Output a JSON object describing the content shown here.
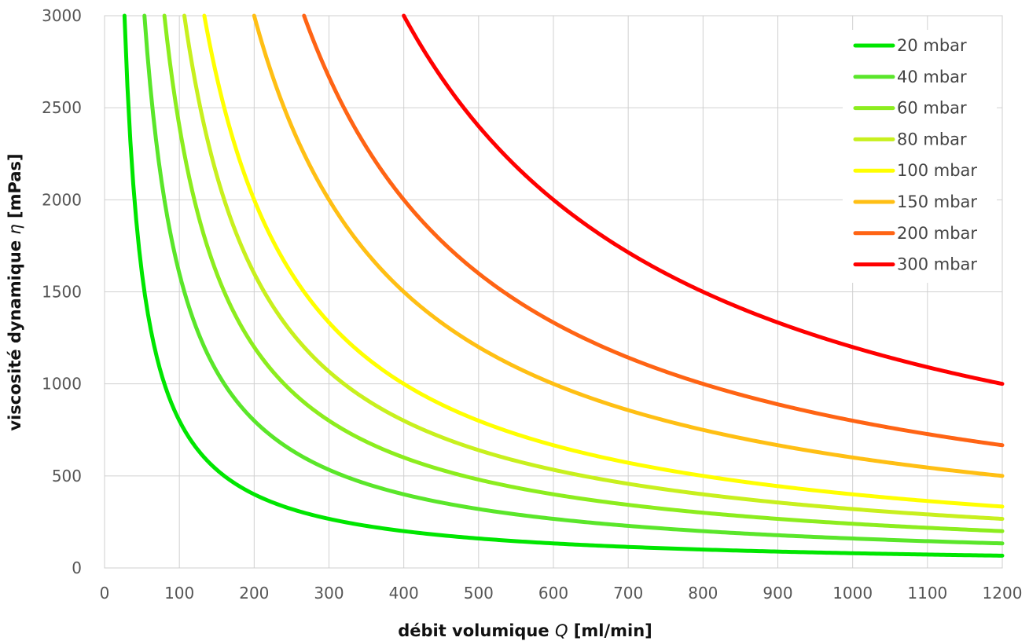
{
  "chart_data": {
    "type": "line",
    "title": "",
    "xlabel_prefix": "débit volumique ",
    "xlabel_symbol": "Q",
    "xlabel_suffix": " [ml/min]",
    "ylabel_prefix": "viscosité dynamique ",
    "ylabel_symbol": "η",
    "ylabel_suffix": " [mPas]",
    "xlim": [
      0,
      1200
    ],
    "ylim": [
      0,
      3000
    ],
    "x_ticks": [
      0,
      100,
      200,
      300,
      400,
      500,
      600,
      700,
      800,
      900,
      1000,
      1100,
      1200
    ],
    "y_ticks": [
      0,
      500,
      1000,
      1500,
      2000,
      2500,
      3000
    ],
    "grid": true,
    "legend_position": "top-right",
    "curve_form": "y = k / x",
    "series": [
      {
        "name": "20 mbar",
        "k": 80000,
        "color": "#00e600",
        "points": [
          [
            30,
            2667
          ],
          [
            50,
            1600
          ],
          [
            100,
            800
          ],
          [
            200,
            400
          ],
          [
            300,
            267
          ],
          [
            400,
            200
          ],
          [
            600,
            133
          ],
          [
            800,
            100
          ],
          [
            1000,
            80
          ],
          [
            1200,
            67
          ]
        ]
      },
      {
        "name": "40 mbar",
        "k": 160000,
        "color": "#5ae62a",
        "points": [
          [
            55,
            2909
          ],
          [
            100,
            1600
          ],
          [
            200,
            800
          ],
          [
            300,
            533
          ],
          [
            400,
            400
          ],
          [
            600,
            267
          ],
          [
            800,
            200
          ],
          [
            1000,
            160
          ],
          [
            1200,
            133
          ]
        ]
      },
      {
        "name": "60 mbar",
        "k": 240000,
        "color": "#8ced1e",
        "points": [
          [
            80,
            3000
          ],
          [
            100,
            2400
          ],
          [
            200,
            1200
          ],
          [
            300,
            800
          ],
          [
            400,
            600
          ],
          [
            600,
            400
          ],
          [
            800,
            300
          ],
          [
            1000,
            240
          ],
          [
            1200,
            200
          ]
        ]
      },
      {
        "name": "80 mbar",
        "k": 320000,
        "color": "#c8f01e",
        "points": [
          [
            107,
            3000
          ],
          [
            200,
            1600
          ],
          [
            300,
            1067
          ],
          [
            400,
            800
          ],
          [
            600,
            533
          ],
          [
            800,
            400
          ],
          [
            1000,
            320
          ],
          [
            1200,
            267
          ]
        ]
      },
      {
        "name": "100 mbar",
        "k": 400000,
        "color": "#ffff00",
        "points": [
          [
            133,
            3000
          ],
          [
            200,
            2000
          ],
          [
            300,
            1333
          ],
          [
            400,
            1000
          ],
          [
            600,
            667
          ],
          [
            800,
            500
          ],
          [
            1000,
            400
          ],
          [
            1200,
            333
          ]
        ]
      },
      {
        "name": "150 mbar",
        "k": 600000,
        "color": "#ffbf14",
        "points": [
          [
            200,
            3000
          ],
          [
            300,
            2000
          ],
          [
            400,
            1500
          ],
          [
            600,
            1000
          ],
          [
            800,
            750
          ],
          [
            1000,
            600
          ],
          [
            1200,
            500
          ]
        ]
      },
      {
        "name": "200 mbar",
        "k": 800000,
        "color": "#ff6414",
        "points": [
          [
            267,
            3000
          ],
          [
            400,
            2000
          ],
          [
            600,
            1333
          ],
          [
            800,
            1000
          ],
          [
            1000,
            800
          ],
          [
            1200,
            667
          ]
        ]
      },
      {
        "name": "300 mbar",
        "k": 1200000,
        "color": "#ff0000",
        "points": [
          [
            400,
            3000
          ],
          [
            600,
            2000
          ],
          [
            800,
            1500
          ],
          [
            1000,
            1200
          ],
          [
            1200,
            1000
          ]
        ]
      }
    ]
  }
}
